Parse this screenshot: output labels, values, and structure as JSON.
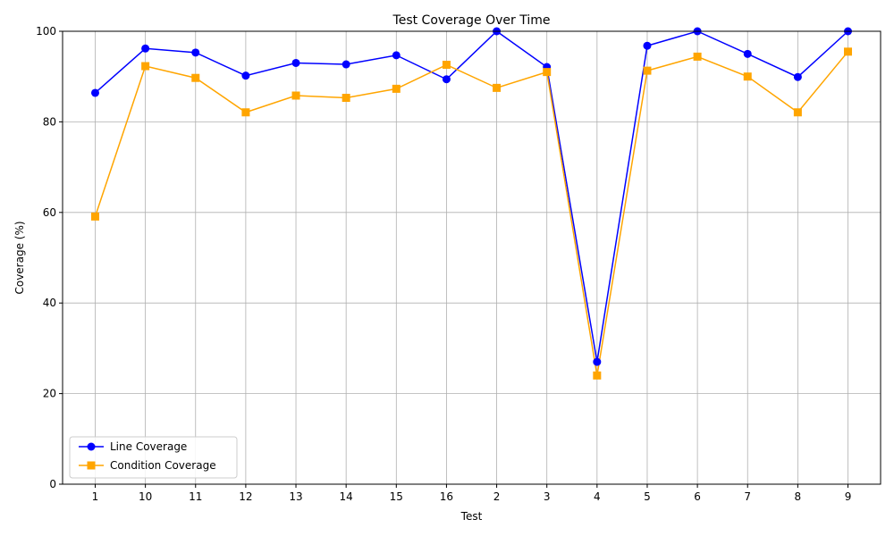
{
  "chart_data": {
    "type": "line",
    "title": "Test Coverage Over Time",
    "xlabel": "Test",
    "ylabel": "Coverage (%)",
    "categories": [
      "1",
      "10",
      "11",
      "12",
      "13",
      "14",
      "15",
      "16",
      "2",
      "3",
      "4",
      "5",
      "6",
      "7",
      "8",
      "9"
    ],
    "ylim": [
      0,
      100
    ],
    "yticks": [
      0,
      20,
      40,
      60,
      80,
      100
    ],
    "grid": true,
    "legend_position": "lower-left",
    "series": [
      {
        "name": "Line Coverage",
        "color": "#0000ff",
        "marker": "circle",
        "values": [
          86.4,
          96.2,
          95.3,
          90.2,
          93.0,
          92.7,
          94.7,
          89.4,
          100.0,
          92.1,
          27.0,
          96.8,
          100.0,
          95.0,
          89.9,
          100.0
        ]
      },
      {
        "name": "Condition Coverage",
        "color": "#ffa500",
        "marker": "square",
        "values": [
          59.1,
          92.3,
          89.7,
          82.1,
          85.8,
          85.3,
          87.3,
          92.6,
          87.5,
          91.0,
          24.0,
          91.3,
          94.4,
          90.0,
          82.1,
          95.5
        ]
      }
    ]
  }
}
